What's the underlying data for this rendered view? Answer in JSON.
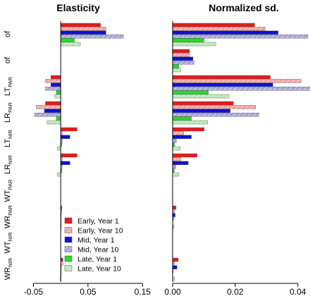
{
  "colors": {
    "early_y1": "#e41a1c",
    "early_y10": "#f4a3a3",
    "mid_y1": "#1010d8",
    "mid_y10": "#a6a6d6",
    "late_y1": "#22dd22",
    "late_y10": "#b7eab7"
  },
  "legend": {
    "placement": "bottom-center",
    "items": [
      {
        "label": "Early, Year 1",
        "color": "#e41a1c",
        "hatched": false
      },
      {
        "label": "Early, Year 10",
        "color": "#f4a3a3",
        "hatched": true
      },
      {
        "label": "Mid, Year 1",
        "color": "#1010d8",
        "hatched": false
      },
      {
        "label": "Mid, Year 10",
        "color": "#a6a6d6",
        "hatched": true
      },
      {
        "label": "Late, Year 1",
        "color": "#22dd22",
        "hatched": false
      },
      {
        "label": "Late, Year 10",
        "color": "#b7eab7",
        "hatched": true
      }
    ]
  },
  "categories": [
    {
      "base": "of",
      "sub": ""
    },
    {
      "base": "of",
      "sub": ""
    },
    {
      "base": "LT",
      "sub": "PAR"
    },
    {
      "base": "LR",
      "sub": "PAR"
    },
    {
      "base": "LT",
      "sub": "NIR"
    },
    {
      "base": "LR",
      "sub": "NIR"
    },
    {
      "base": "WT",
      "sub": "PAR"
    },
    {
      "base": "WR",
      "sub": "PAR"
    },
    {
      "base": "WT",
      "sub": "NIR"
    },
    {
      "base": "WR",
      "sub": "NIR"
    }
  ],
  "chart_data": [
    {
      "type": "bar",
      "orientation": "horizontal",
      "title": "Elasticity",
      "xlim": [
        -0.07,
        0.16
      ],
      "xticks": [
        -0.05,
        0.05,
        0.15
      ],
      "xtick_labels": [
        "-0.05",
        "0.05",
        "0.15"
      ],
      "grid": false,
      "series": [
        {
          "name": "Early, Year 1",
          "values": [
            0.073,
            0.0,
            -0.018,
            -0.028,
            0.03,
            0.03,
            0.0,
            0.002,
            0.0,
            0.004
          ]
        },
        {
          "name": "Early, Year 10",
          "values": [
            0.083,
            0.0,
            -0.028,
            -0.045,
            0.003,
            0.003,
            0.0,
            0.002,
            0.0,
            0.004
          ]
        },
        {
          "name": "Mid, Year 1",
          "values": [
            0.083,
            0.0,
            -0.018,
            -0.03,
            0.017,
            0.017,
            0.0,
            0.001,
            0.0,
            0.001
          ]
        },
        {
          "name": "Mid, Year 10",
          "values": [
            0.115,
            0.0,
            -0.028,
            -0.048,
            0.003,
            0.003,
            0.0,
            0.001,
            0.0,
            0.001
          ]
        },
        {
          "name": "Late, Year 1",
          "values": [
            0.025,
            0.0,
            -0.008,
            -0.008,
            0.002,
            0.002,
            0.0,
            0.001,
            0.0,
            0.001
          ]
        },
        {
          "name": "Late, Year 10",
          "values": [
            0.036,
            0.0,
            -0.011,
            -0.025,
            -0.006,
            -0.006,
            0.0,
            0.001,
            0.0,
            -0.001
          ]
        }
      ]
    },
    {
      "type": "bar",
      "orientation": "horizontal",
      "title": "Normalized sd.",
      "xlim": [
        0.0,
        0.045
      ],
      "xticks": [
        0.0,
        0.02,
        0.04
      ],
      "xtick_labels": [
        "0.00",
        "0.02",
        "0.04"
      ],
      "grid": false,
      "series": [
        {
          "name": "Early, Year 1",
          "values": [
            0.0262,
            0.0054,
            0.0312,
            0.0194,
            0.0101,
            0.0078,
            0.0,
            0.0011,
            0.0,
            0.0018
          ]
        },
        {
          "name": "Early, Year 10",
          "values": [
            0.0295,
            0.0054,
            0.041,
            0.0265,
            0.0035,
            0.0026,
            0.0,
            0.0006,
            0.0,
            0.0006
          ]
        },
        {
          "name": "Mid, Year 1",
          "values": [
            0.0337,
            0.0065,
            0.032,
            0.0184,
            0.006,
            0.005,
            0.0,
            0.0008,
            0.0,
            0.0014
          ]
        },
        {
          "name": "Mid, Year 10",
          "values": [
            0.0432,
            0.0068,
            0.0443,
            0.0275,
            0.0012,
            0.001,
            0.0,
            0.0004,
            0.0,
            0.0002
          ]
        },
        {
          "name": "Late, Year 1",
          "values": [
            0.01,
            0.002,
            0.0114,
            0.006,
            0.0006,
            0.0005,
            0.0,
            0.0001,
            0.0,
            0.0001
          ]
        },
        {
          "name": "Late, Year 10",
          "values": [
            0.0138,
            0.0026,
            0.018,
            0.0112,
            0.0024,
            0.002,
            0.0,
            0.0004,
            0.0,
            0.0006
          ]
        }
      ]
    }
  ]
}
